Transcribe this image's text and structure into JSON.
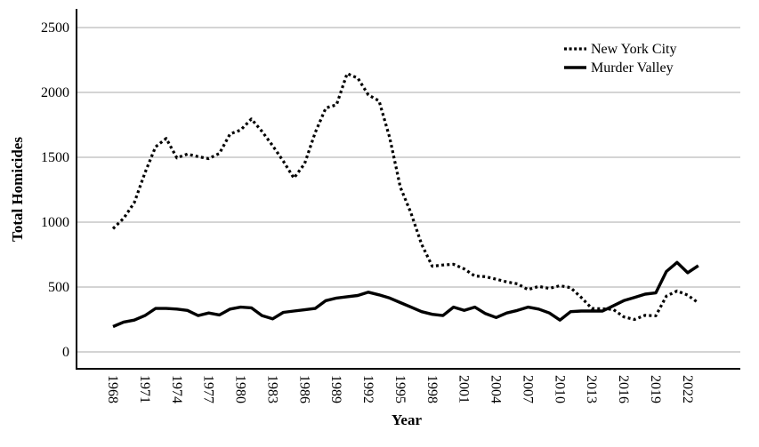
{
  "chart_data": {
    "type": "line",
    "title": "",
    "xlabel": "Year",
    "ylabel": "Total Homicides",
    "x": [
      1968,
      1969,
      1970,
      1971,
      1972,
      1973,
      1974,
      1975,
      1976,
      1977,
      1978,
      1979,
      1980,
      1981,
      1982,
      1983,
      1984,
      1985,
      1986,
      1987,
      1988,
      1989,
      1990,
      1991,
      1992,
      1993,
      1994,
      1995,
      1996,
      1997,
      1998,
      1999,
      2000,
      2001,
      2002,
      2003,
      2004,
      2005,
      2006,
      2007,
      2008,
      2009,
      2010,
      2011,
      2012,
      2013,
      2014,
      2015,
      2016,
      2017,
      2018,
      2019,
      2020,
      2021,
      2022,
      2023
    ],
    "xticks": [
      1968,
      1971,
      1974,
      1977,
      1980,
      1983,
      1986,
      1989,
      1992,
      1995,
      1998,
      2001,
      2004,
      2007,
      2010,
      2013,
      2016,
      2019,
      2022
    ],
    "yticks": [
      0,
      500,
      1000,
      1500,
      2000,
      2500
    ],
    "ylim": [
      0,
      2500
    ],
    "grid": "horizontal",
    "legend_position": "top-right",
    "series": [
      {
        "name": "New York City",
        "style": "dotted",
        "color": "#000000",
        "values": [
          950,
          1030,
          1150,
          1380,
          1580,
          1645,
          1495,
          1525,
          1505,
          1490,
          1530,
          1680,
          1710,
          1795,
          1700,
          1590,
          1470,
          1340,
          1450,
          1690,
          1880,
          1905,
          2145,
          2110,
          1980,
          1935,
          1650,
          1270,
          1070,
          830,
          660,
          670,
          675,
          640,
          585,
          580,
          560,
          540,
          525,
          480,
          505,
          490,
          510,
          495,
          420,
          335,
          332,
          328,
          270,
          250,
          282,
          278,
          430,
          470,
          438,
          378
        ]
      },
      {
        "name": "Murder Valley",
        "style": "solid",
        "color": "#000000",
        "values": [
          195,
          230,
          245,
          280,
          335,
          335,
          330,
          320,
          280,
          300,
          285,
          330,
          345,
          340,
          280,
          255,
          305,
          315,
          325,
          335,
          395,
          415,
          425,
          435,
          460,
          440,
          415,
          380,
          345,
          310,
          290,
          280,
          345,
          320,
          345,
          295,
          265,
          300,
          320,
          345,
          330,
          300,
          245,
          310,
          315,
          315,
          315,
          355,
          395,
          420,
          445,
          455,
          620,
          690,
          610,
          665
        ]
      }
    ]
  },
  "colors": {
    "background": "#ffffff",
    "gridline": "#a8a8a8",
    "axis": "#000000",
    "text": "#000000"
  }
}
